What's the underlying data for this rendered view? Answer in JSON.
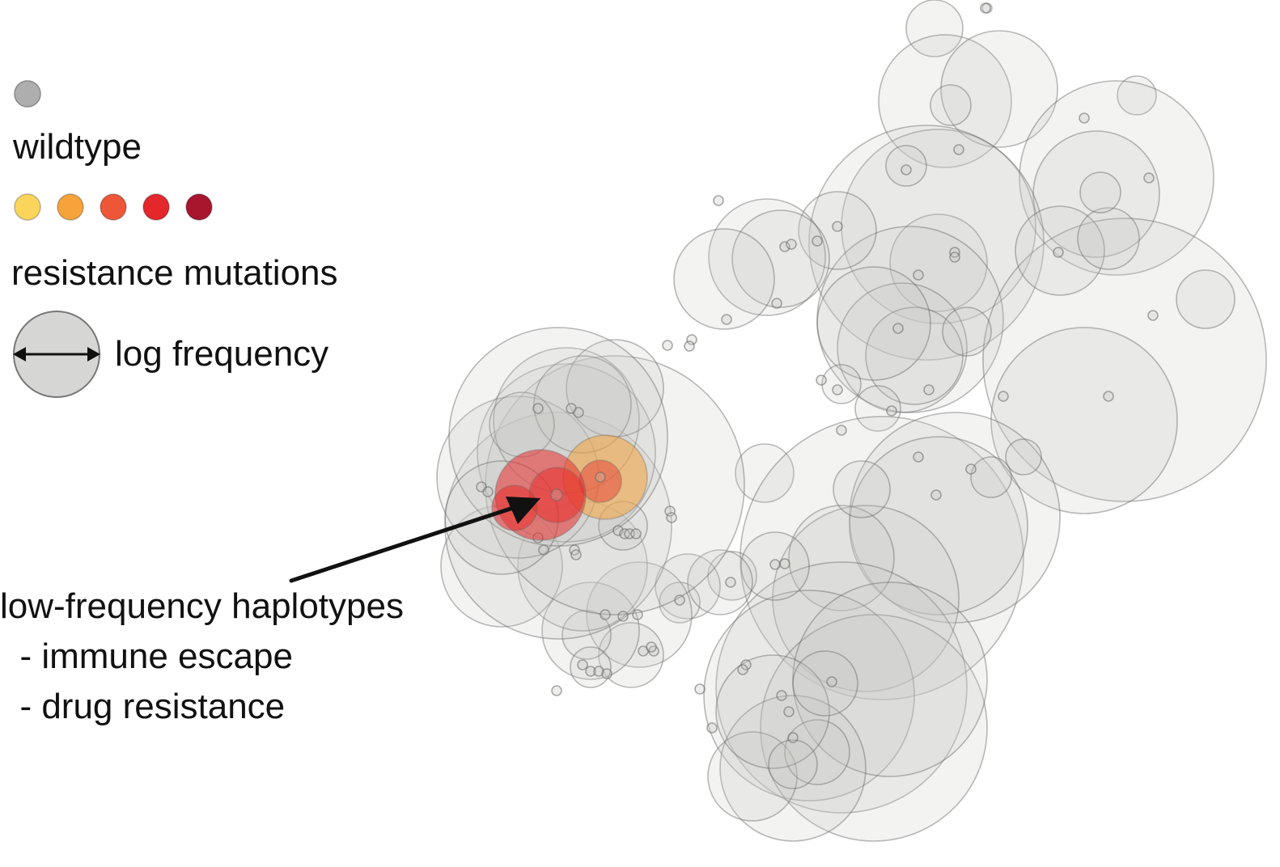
{
  "legend": {
    "wildtype_label": "wildtype",
    "resistance_label": "resistance mutations",
    "frequency_label": "log frequency",
    "wildtype_color": "#aeaeae",
    "resistance_colors": [
      "#fbd55b",
      "#f6a33b",
      "#ee5638",
      "#e3272b",
      "#a8162e"
    ]
  },
  "annotation": {
    "lines": [
      "low-frequency haplotypes",
      "  - immune escape",
      "  - drug resistance"
    ]
  },
  "colors": {
    "bubble_fill": "#c7c9c5",
    "bubble_stroke": "#666666",
    "resistance_orange": "#f2a23a",
    "resistance_red": "#e8302d",
    "arrow": "#111111"
  }
}
